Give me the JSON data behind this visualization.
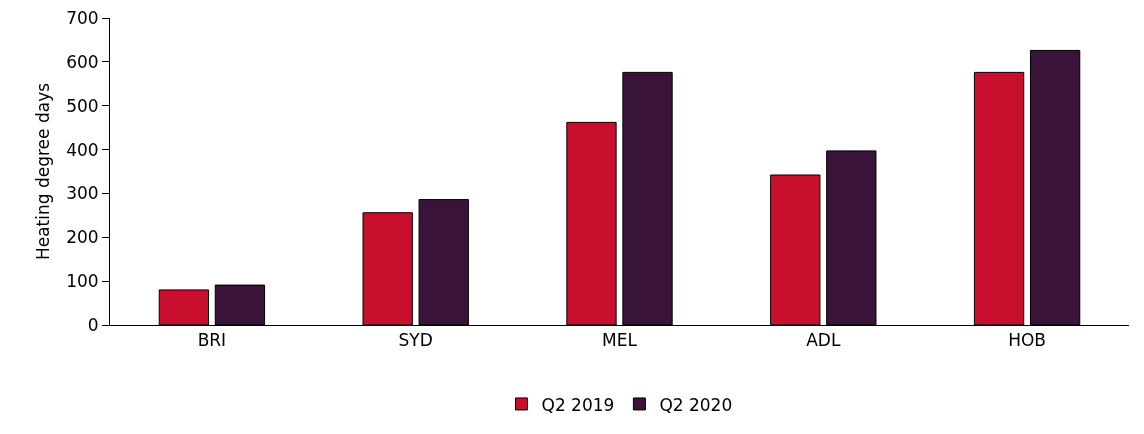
{
  "chart_data": {
    "type": "bar",
    "ylabel": "Heating degree days",
    "categories": [
      "BRI",
      "SYD",
      "MEL",
      "ADL",
      "HOB"
    ],
    "series": [
      {
        "name": "Q2 2019",
        "color": "#c8102e",
        "values": [
          80,
          256,
          462,
          342,
          576
        ]
      },
      {
        "name": "Q2 2020",
        "color": "#3a1338",
        "values": [
          91,
          286,
          576,
          397,
          626
        ]
      }
    ],
    "ylim": [
      0,
      700
    ],
    "yticks": [
      0,
      100,
      200,
      300,
      400,
      500,
      600,
      700
    ],
    "grid": false,
    "legend": "bottom"
  }
}
